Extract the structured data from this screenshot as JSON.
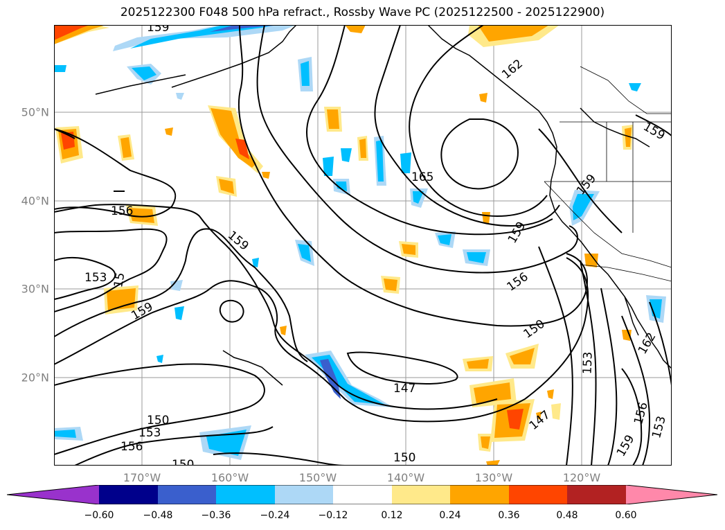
{
  "title": "2025122300 F048 500 hPa refract., Rossby Wave PC (2025122500 - 2025122900)",
  "lat_labels": [
    "50°N",
    "40°N",
    "30°N",
    "20°N"
  ],
  "lon_labels": [
    "170°W",
    "160°W",
    "150°W",
    "140°W",
    "130°W",
    "120°W"
  ],
  "contour_labels": [
    "159",
    "162",
    "159",
    "165",
    "159",
    "159",
    "156",
    "159",
    "153",
    "15",
    "159",
    "156",
    "150",
    "153",
    "147",
    "147",
    "150",
    "153",
    "156",
    "162",
    "156",
    "153",
    "159",
    "150",
    "153",
    "156",
    "150"
  ],
  "colorbar": {
    "ticks": [
      "−0.60",
      "−0.48",
      "−0.36",
      "−0.24",
      "−0.12",
      "0.12",
      "0.24",
      "0.36",
      "0.48",
      "0.60"
    ],
    "colors": [
      "#9932cc",
      "#00008b",
      "#3a5fcd",
      "#00bfff",
      "#add8f6",
      "#ffffff",
      "#ffe98a",
      "#ffa500",
      "#ff4500",
      "#b22222",
      "#ff88aa"
    ]
  }
}
